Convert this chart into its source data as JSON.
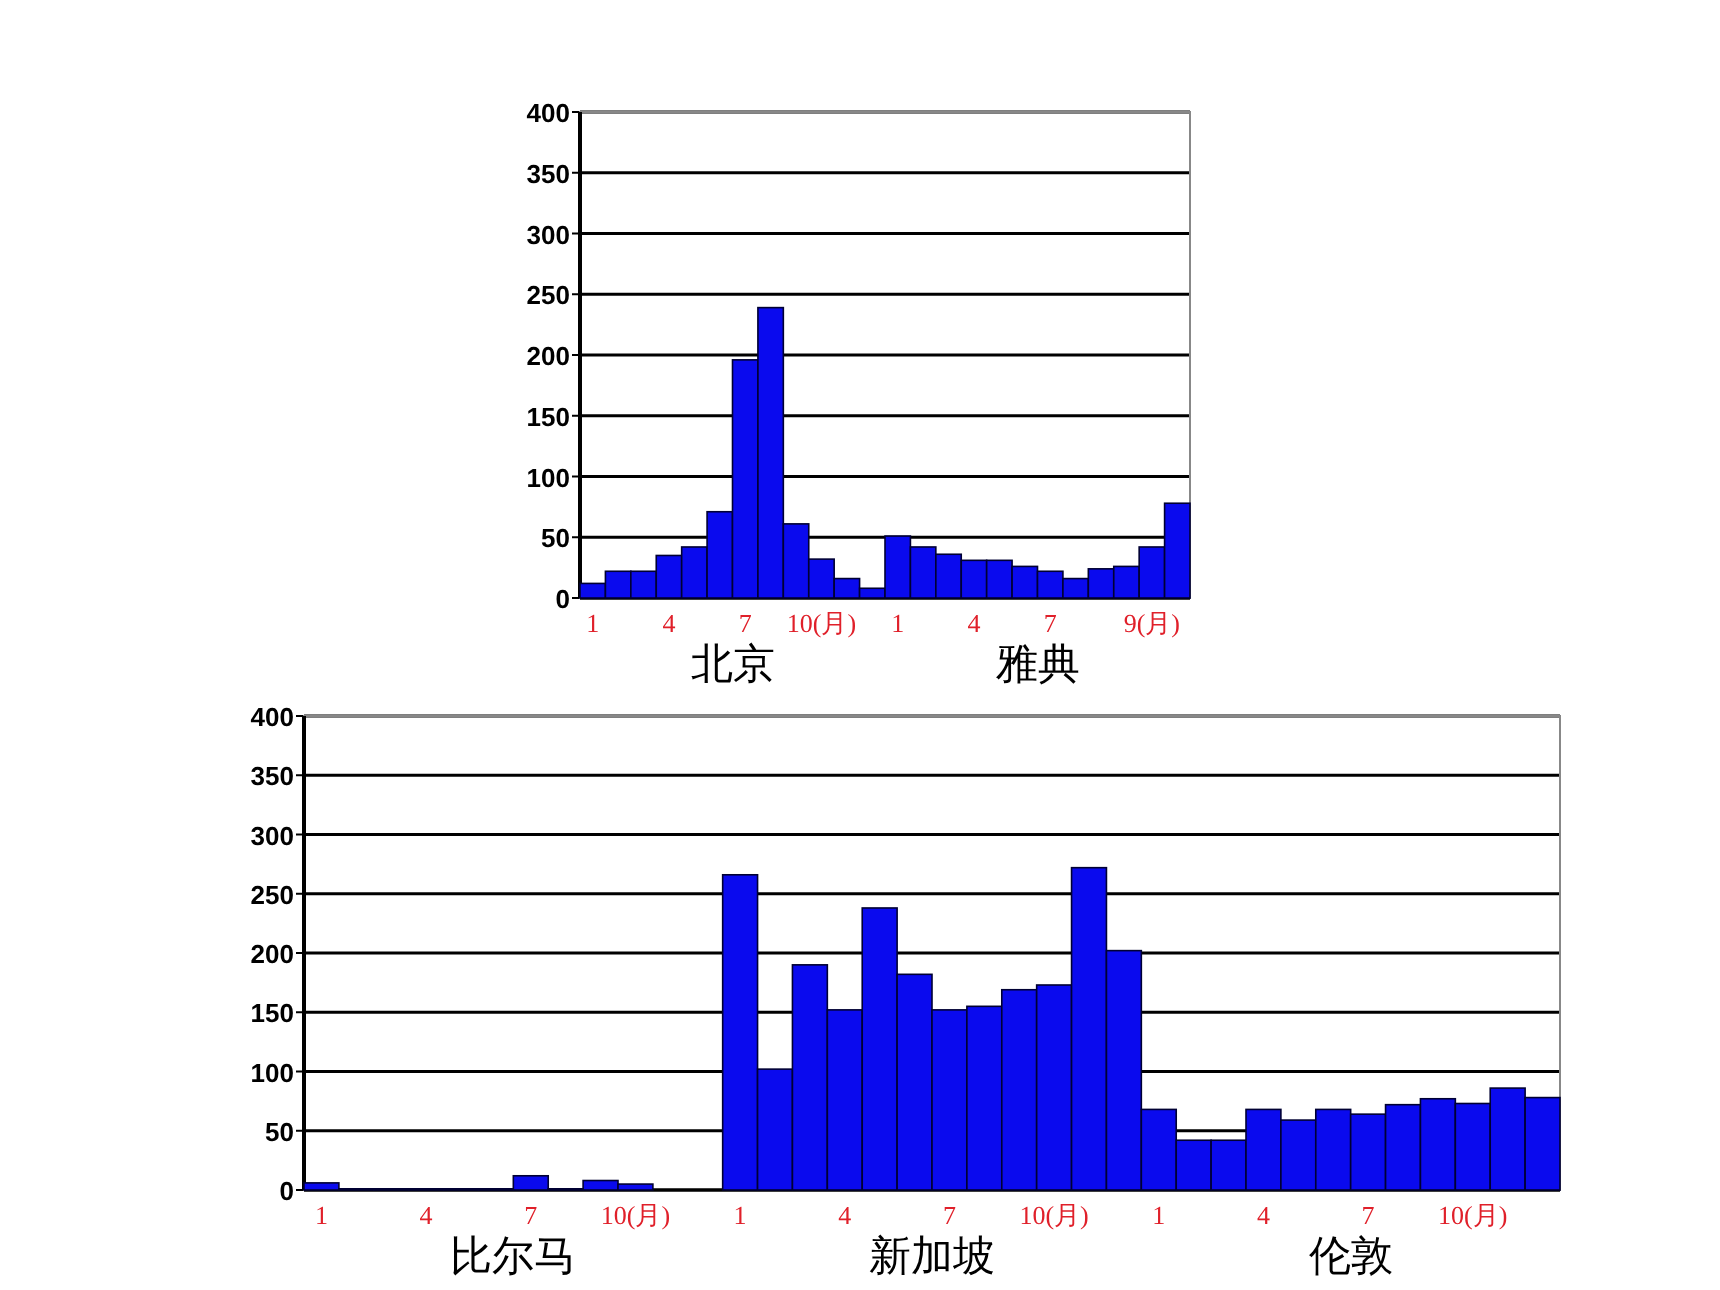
{
  "chart_data": [
    {
      "type": "bar",
      "categories": [
        "1",
        null,
        null,
        "4",
        null,
        null,
        "7",
        null,
        null,
        "10(月)",
        null,
        null,
        "1",
        null,
        null,
        "4",
        null,
        null,
        "7",
        null,
        null,
        null,
        "9(月)",
        null
      ],
      "series": [
        {
          "name": "北京",
          "color": "#0a0aee",
          "values": [
            12,
            22,
            22,
            35,
            42,
            71,
            196,
            239,
            61,
            32,
            16,
            8,
            null,
            null,
            null,
            null,
            null,
            null,
            null,
            null,
            null,
            null,
            null,
            null
          ]
        },
        {
          "name": "雅典",
          "color": "#0a0aee",
          "values": [
            null,
            null,
            null,
            null,
            null,
            null,
            null,
            null,
            null,
            null,
            null,
            null,
            51,
            42,
            36,
            31,
            31,
            26,
            22,
            16,
            24,
            26,
            42,
            78
          ]
        }
      ],
      "ylim": [
        0,
        400
      ],
      "yticks": [
        0,
        50,
        100,
        150,
        200,
        250,
        300,
        350,
        400
      ],
      "grid": "y"
    },
    {
      "type": "bar",
      "categories": [
        "1",
        null,
        null,
        "4",
        null,
        null,
        "7",
        null,
        null,
        "10(月)",
        null,
        null,
        "1",
        null,
        null,
        "4",
        null,
        null,
        "7",
        null,
        null,
        "10(月)",
        null,
        null,
        "1",
        null,
        null,
        "4",
        null,
        null,
        "7",
        null,
        null,
        "10(月)",
        null,
        null
      ],
      "series": [
        {
          "name": "比尔马",
          "color": "#0a0aee",
          "values": [
            6,
            1,
            1,
            1,
            1,
            1,
            12,
            1,
            8,
            5,
            0,
            0,
            null,
            null,
            null,
            null,
            null,
            null,
            null,
            null,
            null,
            null,
            null,
            null,
            null,
            null,
            null,
            null,
            null,
            null,
            null,
            null,
            null,
            null,
            null,
            null
          ]
        },
        {
          "name": "新加坡",
          "color": "#0a0aee",
          "values": [
            null,
            null,
            null,
            null,
            null,
            null,
            null,
            null,
            null,
            null,
            null,
            null,
            266,
            102,
            190,
            152,
            238,
            182,
            152,
            155,
            169,
            173,
            272,
            202,
            null,
            null,
            null,
            null,
            null,
            null,
            null,
            null,
            null,
            null,
            null,
            null
          ]
        },
        {
          "name": "伦敦",
          "color": "#0a0aee",
          "values": [
            null,
            null,
            null,
            null,
            null,
            null,
            null,
            null,
            null,
            null,
            null,
            null,
            null,
            null,
            null,
            null,
            null,
            null,
            null,
            null,
            null,
            null,
            null,
            null,
            68,
            42,
            42,
            68,
            59,
            68,
            64,
            72,
            77,
            73,
            86,
            78
          ]
        }
      ],
      "ylim": [
        0,
        400
      ],
      "yticks": [
        0,
        50,
        100,
        150,
        200,
        250,
        300,
        350,
        400
      ],
      "grid": "y"
    }
  ]
}
